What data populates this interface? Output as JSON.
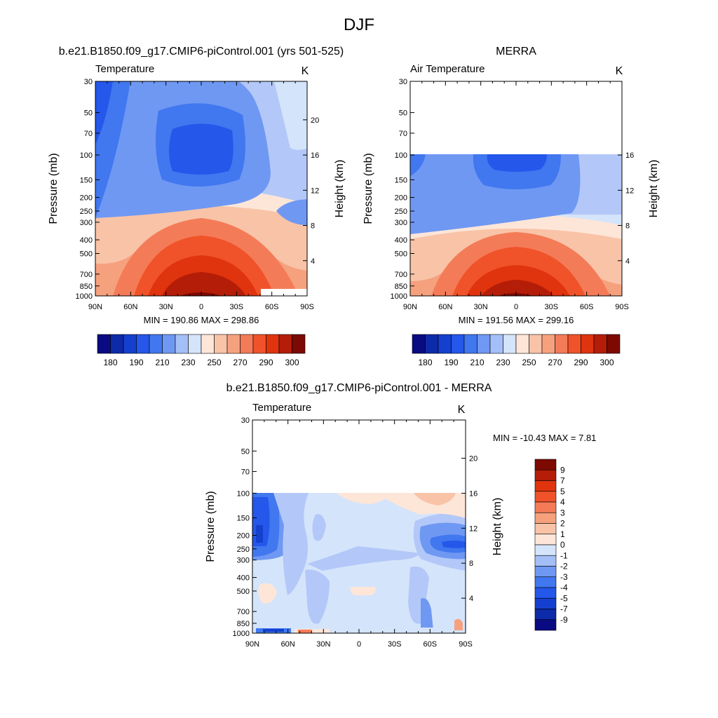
{
  "figure_title": "DJF",
  "colorbar_abs": {
    "colors": [
      "#0a0a82",
      "#0d2aa8",
      "#1540cf",
      "#2457ea",
      "#4177ef",
      "#6f98f3",
      "#a4bff7",
      "#d4e4fb",
      "#fde6d8",
      "#f9c3a8",
      "#f6a17e",
      "#f47b57",
      "#f05329",
      "#e0340e",
      "#b41d07",
      "#7c0a02"
    ],
    "labels": [
      "180",
      "190",
      "210",
      "230",
      "250",
      "270",
      "290",
      "300"
    ]
  },
  "colorbar_diff": {
    "colors": [
      "#0a0a82",
      "#0d2aa8",
      "#1540cf",
      "#2457ea",
      "#4177ef",
      "#6f98f3",
      "#a4bff7",
      "#d4e4fb",
      "#fde6d8",
      "#f9c3a8",
      "#f6a17e",
      "#f47b57",
      "#f05329",
      "#e0340e",
      "#b41d07",
      "#7c0a02"
    ],
    "labels": [
      "-9",
      "-7",
      "-5",
      "-4",
      "-3",
      "-2",
      "-1",
      "0",
      "1",
      "2",
      "3",
      "4",
      "5",
      "7",
      "9"
    ]
  },
  "chart_data": [
    {
      "type": "heatmap",
      "title": "b.e21.B1850.f09_g17.CMIP6-piControl.001 (yrs 501-525)",
      "subtitle_left": "Temperature",
      "units": "K",
      "xlabel": "",
      "ylabel": "Pressure (mb)",
      "ylabel_right": "Height (km)",
      "x_ticks": [
        "90N",
        "60N",
        "30N",
        "0",
        "30S",
        "60S",
        "90S"
      ],
      "y_ticks": [
        "30",
        "50",
        "70",
        "100",
        "150",
        "200",
        "250",
        "300",
        "400",
        "500",
        "700",
        "850",
        "1000"
      ],
      "y2_ticks": [
        "20",
        "16",
        "12",
        "8",
        "4"
      ],
      "y_scale": "log",
      "stats": "MIN = 190.86  MAX = 298.86",
      "min": 190.86,
      "max": 298.86
    },
    {
      "type": "heatmap",
      "title": "MERRA",
      "subtitle_left": "Air Temperature",
      "units": "K",
      "xlabel": "",
      "ylabel": "Pressure (mb)",
      "ylabel_right": "Height (km)",
      "x_ticks": [
        "90N",
        "60N",
        "30N",
        "0",
        "30S",
        "60S",
        "90S"
      ],
      "y_ticks": [
        "30",
        "50",
        "70",
        "100",
        "150",
        "200",
        "250",
        "300",
        "400",
        "500",
        "700",
        "850",
        "1000"
      ],
      "y2_ticks": [
        "16",
        "12",
        "8",
        "4"
      ],
      "y_scale": "log",
      "stats": "MIN = 191.56  MAX = 299.16",
      "min": 191.56,
      "max": 299.16
    },
    {
      "type": "heatmap",
      "title": "b.e21.B1850.f09_g17.CMIP6-piControl.001 - MERRA",
      "subtitle_left": "Temperature",
      "units": "K",
      "xlabel": "",
      "ylabel": "Pressure (mb)",
      "ylabel_right": "Height (km)",
      "x_ticks": [
        "90N",
        "60N",
        "30N",
        "0",
        "30S",
        "60S",
        "90S"
      ],
      "y_ticks": [
        "30",
        "50",
        "70",
        "100",
        "150",
        "200",
        "250",
        "300",
        "400",
        "500",
        "700",
        "850",
        "1000"
      ],
      "y2_ticks": [
        "20",
        "16",
        "12",
        "8",
        "4"
      ],
      "y_scale": "log",
      "stats": "MIN = -10.43  MAX =   7.81",
      "min": -10.43,
      "max": 7.81
    }
  ]
}
